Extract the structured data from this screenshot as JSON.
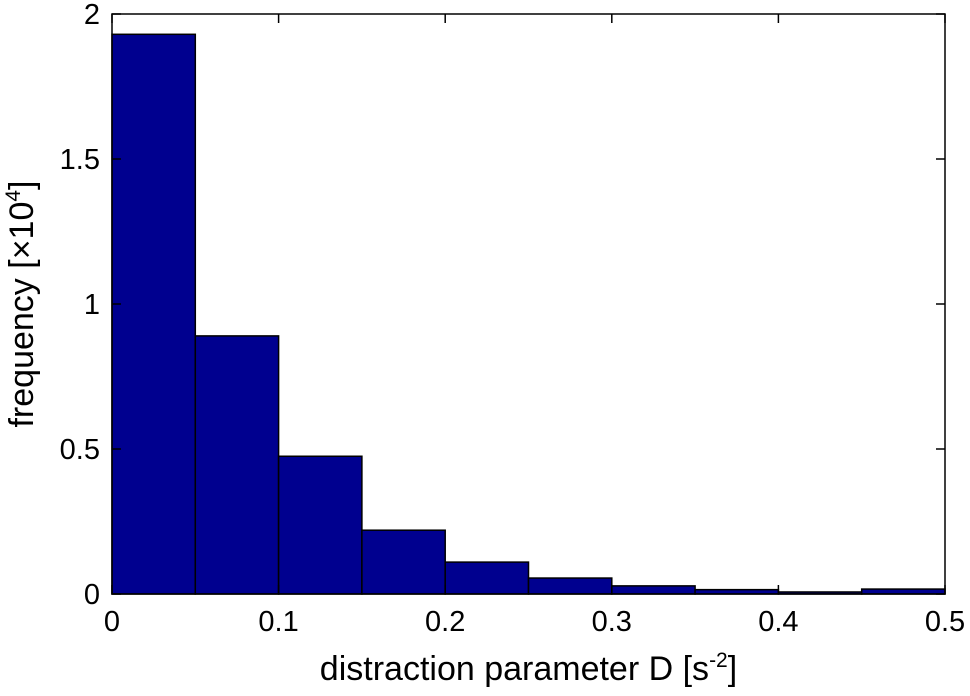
{
  "chart_data": {
    "type": "bar",
    "title": "",
    "xlabel": {
      "text": "distraction parameter D [s",
      "superscript": "-2",
      "suffix": "]"
    },
    "ylabel": {
      "text": "frequency [×10",
      "superscript": "4",
      "suffix": "]"
    },
    "xlim": [
      0,
      0.5
    ],
    "ylim": [
      0,
      2
    ],
    "xticks": [
      {
        "value": 0,
        "label": "0"
      },
      {
        "value": 0.1,
        "label": "0.1"
      },
      {
        "value": 0.2,
        "label": "0.2"
      },
      {
        "value": 0.3,
        "label": "0.3"
      },
      {
        "value": 0.4,
        "label": "0.4"
      },
      {
        "value": 0.5,
        "label": "0.5"
      }
    ],
    "yticks": [
      {
        "value": 0,
        "label": "0"
      },
      {
        "value": 0.5,
        "label": "0.5"
      },
      {
        "value": 1,
        "label": "1"
      },
      {
        "value": 1.5,
        "label": "1.5"
      },
      {
        "value": 2,
        "label": "2"
      }
    ],
    "bins": [
      {
        "x0": 0.0,
        "x1": 0.05,
        "value": 1.93
      },
      {
        "x0": 0.05,
        "x1": 0.1,
        "value": 0.89
      },
      {
        "x0": 0.1,
        "x1": 0.15,
        "value": 0.475
      },
      {
        "x0": 0.15,
        "x1": 0.2,
        "value": 0.22
      },
      {
        "x0": 0.2,
        "x1": 0.25,
        "value": 0.11
      },
      {
        "x0": 0.25,
        "x1": 0.3,
        "value": 0.055
      },
      {
        "x0": 0.3,
        "x1": 0.35,
        "value": 0.028
      },
      {
        "x0": 0.35,
        "x1": 0.4,
        "value": 0.015
      },
      {
        "x0": 0.4,
        "x1": 0.45,
        "value": 0.007
      },
      {
        "x0": 0.45,
        "x1": 0.5,
        "value": 0.017
      }
    ],
    "bar_color": "#00008f",
    "bar_edge_color": "#000000",
    "grid": false,
    "legend": "none"
  }
}
